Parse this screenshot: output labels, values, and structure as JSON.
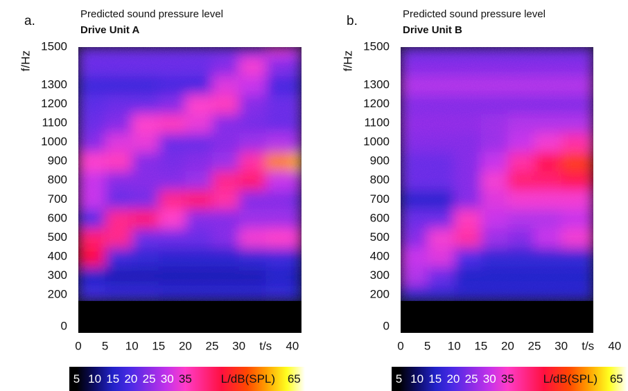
{
  "chart_data": [
    {
      "type": "heatmap",
      "panel_label": "a.",
      "title": "Predicted sound pressure level",
      "subtitle": "Drive Unit A",
      "ylabel": "f/Hz",
      "xlabel": "t/s",
      "xlim": [
        0,
        41.7
      ],
      "ylim": [
        0,
        1500
      ],
      "xticks": [
        0,
        5,
        10,
        15,
        20,
        25,
        30,
        40
      ],
      "yticks": [
        0,
        200,
        300,
        400,
        500,
        600,
        700,
        800,
        900,
        1000,
        1100,
        1200,
        1300,
        1500
      ],
      "x_bins": [
        0,
        5,
        10,
        15,
        20,
        25,
        30,
        35,
        40,
        41.7
      ],
      "y_bins": [
        170,
        250,
        350,
        450,
        550,
        650,
        750,
        850,
        950,
        1050,
        1150,
        1250,
        1350,
        1450,
        1500
      ],
      "values": [
        [
          18,
          17,
          17,
          16,
          16,
          16,
          16,
          17,
          15
        ],
        [
          15,
          14,
          14,
          14,
          14,
          14,
          14,
          15,
          14
        ],
        [
          45,
          18,
          17,
          16,
          16,
          16,
          17,
          18,
          16
        ],
        [
          42,
          40,
          22,
          22,
          22,
          24,
          34,
          35,
          34
        ],
        [
          20,
          40,
          42,
          35,
          24,
          24,
          26,
          26,
          25
        ],
        [
          30,
          22,
          23,
          40,
          42,
          38,
          24,
          24,
          22
        ],
        [
          30,
          24,
          24,
          24,
          26,
          40,
          42,
          30,
          28
        ],
        [
          35,
          36,
          24,
          23,
          24,
          26,
          38,
          55,
          58
        ],
        [
          24,
          32,
          33,
          22,
          22,
          24,
          26,
          28,
          26
        ],
        [
          22,
          24,
          35,
          36,
          33,
          24,
          23,
          22,
          22
        ],
        [
          21,
          22,
          22,
          24,
          35,
          36,
          24,
          22,
          22
        ],
        [
          18,
          18,
          18,
          19,
          19,
          32,
          30,
          19,
          18
        ],
        [
          22,
          22,
          22,
          22,
          22,
          24,
          34,
          24,
          22
        ],
        [
          22,
          22,
          22,
          22,
          22,
          22,
          24,
          32,
          28
        ]
      ],
      "clim": [
        3,
        68
      ],
      "colorscale": [
        {
          "value": 5,
          "color": "#000000"
        },
        {
          "value": 10,
          "color": "#0c0c66"
        },
        {
          "value": 15,
          "color": "#2222c8"
        },
        {
          "value": 20,
          "color": "#4c2ae6"
        },
        {
          "value": 25,
          "color": "#8a2ce6"
        },
        {
          "value": 30,
          "color": "#c432ea"
        },
        {
          "value": 35,
          "color": "#ff3cc8"
        },
        {
          "value": 45,
          "color": "#ff1040"
        },
        {
          "value": 52,
          "color": "#ff4800"
        },
        {
          "value": 57,
          "color": "#ff9a00"
        },
        {
          "value": 63,
          "color": "#ffff20"
        },
        {
          "value": 68,
          "color": "#ffffff"
        }
      ],
      "colorbar_ticks": [
        5,
        10,
        15,
        20,
        25,
        30,
        35,
        65
      ],
      "colorbar_label": "L/dB(SPL)"
    },
    {
      "type": "heatmap",
      "panel_label": "b.",
      "title": "Predicted sound pressure level",
      "subtitle": "Drive Unit B",
      "ylabel": "f/Hz",
      "xlabel": "t/s",
      "xlim": [
        0,
        36
      ],
      "ylim": [
        0,
        1500
      ],
      "xticks": [
        0,
        5,
        10,
        15,
        20,
        25,
        30,
        40
      ],
      "yticks": [
        0,
        200,
        300,
        400,
        500,
        600,
        700,
        800,
        900,
        1000,
        1100,
        1200,
        1300,
        1500
      ],
      "x_bins": [
        0,
        5,
        10,
        15,
        20,
        25,
        30,
        35,
        36
      ],
      "y_bins": [
        170,
        250,
        350,
        450,
        550,
        650,
        750,
        850,
        950,
        1050,
        1150,
        1250,
        1350,
        1450,
        1500
      ],
      "values": [
        [
          17,
          17,
          16,
          16,
          16,
          16,
          16,
          16
        ],
        [
          28,
          22,
          15,
          15,
          15,
          15,
          15,
          15
        ],
        [
          30,
          32,
          20,
          17,
          17,
          17,
          17,
          17
        ],
        [
          24,
          34,
          38,
          26,
          24,
          30,
          34,
          34
        ],
        [
          22,
          22,
          36,
          30,
          28,
          28,
          30,
          30
        ],
        [
          16,
          16,
          24,
          32,
          34,
          34,
          34,
          32
        ],
        [
          22,
          22,
          24,
          34,
          42,
          42,
          44,
          44
        ],
        [
          22,
          22,
          24,
          30,
          38,
          44,
          50,
          48
        ],
        [
          24,
          24,
          24,
          26,
          30,
          34,
          38,
          36
        ],
        [
          25,
          25,
          25,
          26,
          28,
          28,
          28,
          28
        ],
        [
          24,
          24,
          24,
          24,
          24,
          24,
          24,
          24
        ],
        [
          28,
          28,
          28,
          28,
          28,
          28,
          28,
          28
        ],
        [
          24,
          24,
          24,
          24,
          24,
          24,
          24,
          24
        ],
        [
          22,
          22,
          22,
          22,
          22,
          22,
          22,
          22
        ]
      ],
      "clim": [
        3,
        68
      ],
      "colorscale": [
        {
          "value": 5,
          "color": "#000000"
        },
        {
          "value": 10,
          "color": "#0c0c66"
        },
        {
          "value": 15,
          "color": "#2222c8"
        },
        {
          "value": 20,
          "color": "#4c2ae6"
        },
        {
          "value": 25,
          "color": "#8a2ce6"
        },
        {
          "value": 30,
          "color": "#c432ea"
        },
        {
          "value": 35,
          "color": "#ff3cc8"
        },
        {
          "value": 45,
          "color": "#ff1040"
        },
        {
          "value": 52,
          "color": "#ff4800"
        },
        {
          "value": 57,
          "color": "#ff9a00"
        },
        {
          "value": 63,
          "color": "#ffff20"
        },
        {
          "value": 68,
          "color": "#ffffff"
        }
      ],
      "colorbar_ticks": [
        5,
        10,
        15,
        20,
        25,
        30,
        35,
        65
      ],
      "colorbar_label": "L/dB(SPL)"
    }
  ]
}
